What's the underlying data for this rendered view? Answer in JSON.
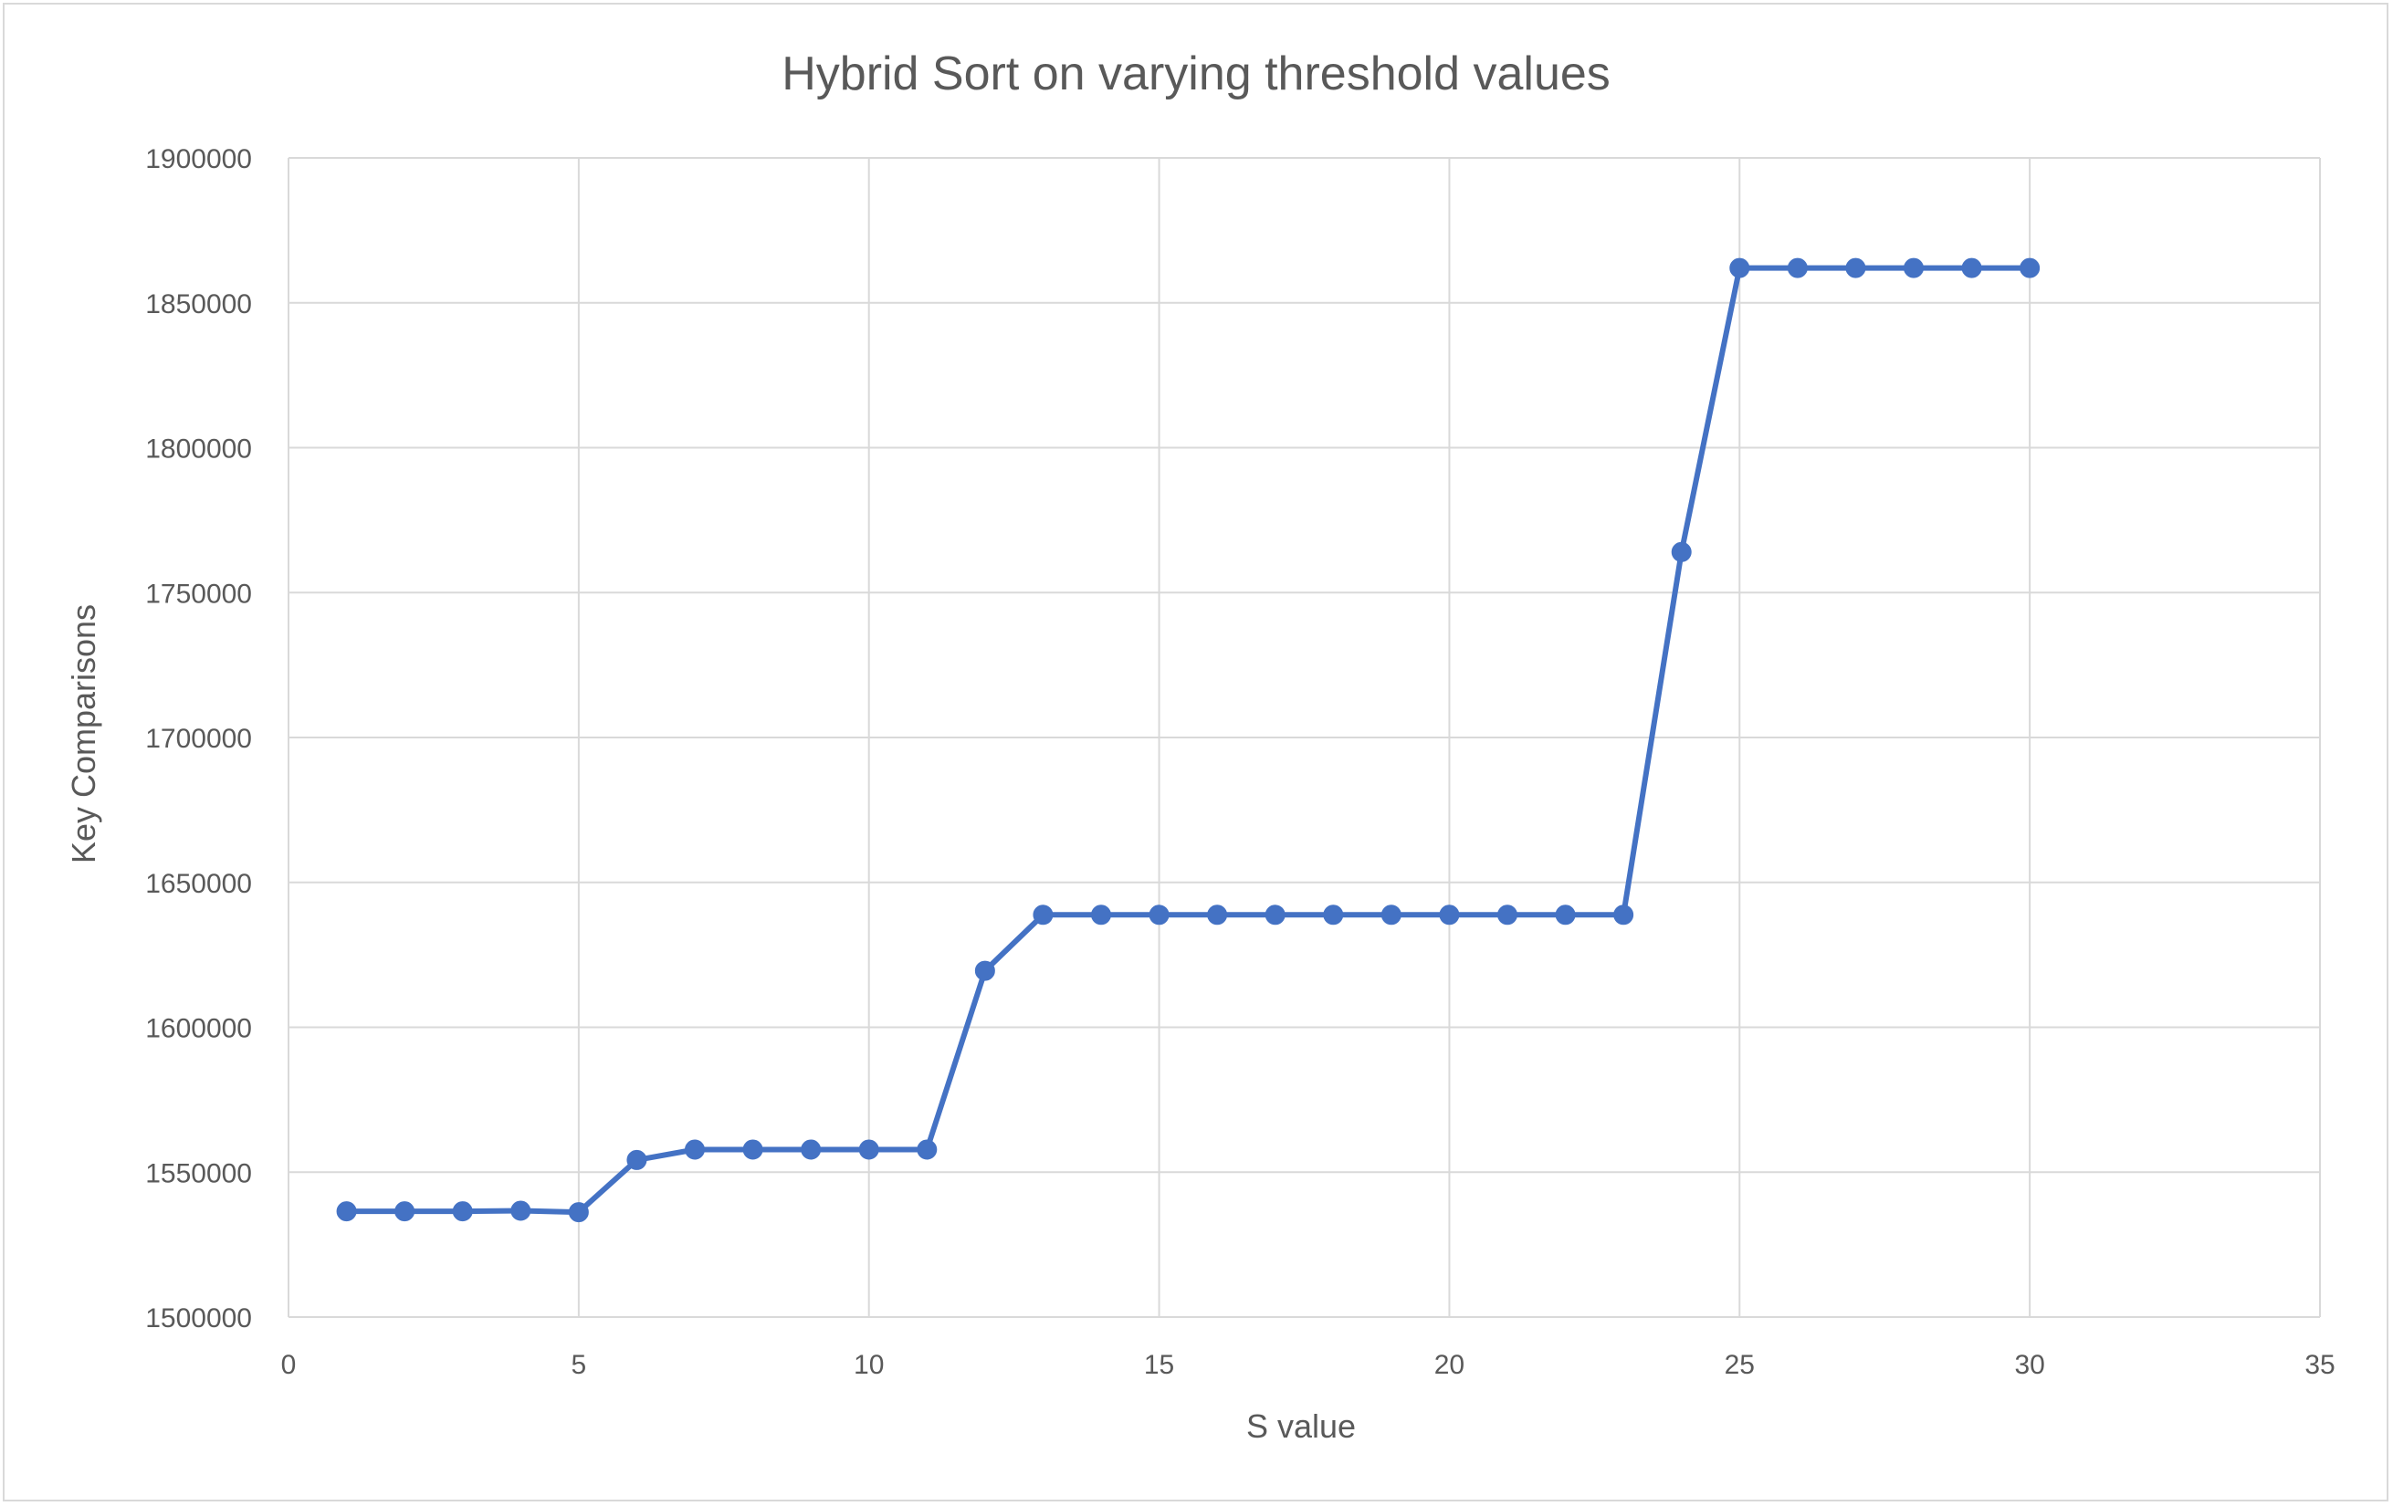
{
  "chart_data": {
    "type": "line",
    "title": "Hybrid Sort on varying threshold values",
    "xlabel": "S value",
    "ylabel": "Key Comparisons",
    "xlim": [
      0,
      35
    ],
    "ylim": [
      1500000,
      1900000
    ],
    "xticks": [
      0,
      5,
      10,
      15,
      20,
      25,
      30,
      35
    ],
    "yticks": [
      1500000,
      1550000,
      1600000,
      1650000,
      1700000,
      1750000,
      1800000,
      1850000,
      1900000
    ],
    "grid": true,
    "legend": "none",
    "series": [
      {
        "color": "#4472c4",
        "marker": "circle",
        "x": [
          1,
          2,
          3,
          4,
          5,
          6,
          7,
          8,
          9,
          10,
          11,
          12,
          13,
          14,
          15,
          16,
          17,
          18,
          19,
          20,
          21,
          22,
          23,
          24,
          25,
          26,
          27,
          28,
          29,
          30
        ],
        "y": [
          1536500,
          1536500,
          1536500,
          1536700,
          1536200,
          1554200,
          1557800,
          1557800,
          1557800,
          1557800,
          1557800,
          1619500,
          1638800,
          1638800,
          1638800,
          1638800,
          1638800,
          1638800,
          1638800,
          1638800,
          1638800,
          1638800,
          1638800,
          1764000,
          1862000,
          1862000,
          1862000,
          1862000,
          1862000,
          1862000
        ]
      }
    ],
    "colors": {
      "grid": "#d9d9d9",
      "text": "#595959",
      "series": "#4472c4"
    }
  }
}
